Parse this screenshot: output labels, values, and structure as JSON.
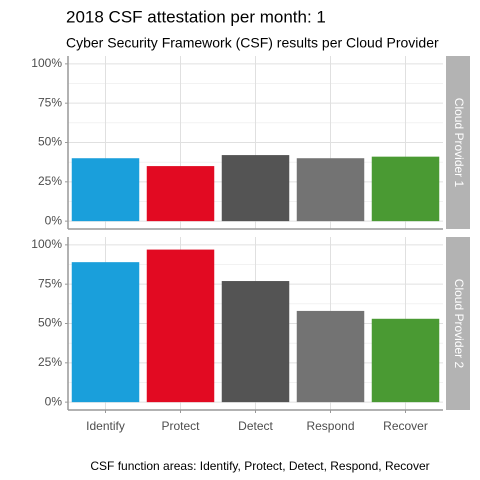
{
  "chart_data": {
    "type": "bar",
    "title": "2018 CSF attestation per month: 1",
    "subtitle": "Cyber Security Framework (CSF) results per Cloud Provider",
    "caption": "CSF function areas: Identify, Protect, Detect, Respond, Recover",
    "categories": [
      "Identify",
      "Protect",
      "Detect",
      "Respond",
      "Recover"
    ],
    "colors": [
      "#1a9fdb",
      "#e20a22",
      "#545454",
      "#737373",
      "#4a9a33"
    ],
    "ylim": [
      -5,
      105
    ],
    "yticks": [
      {
        "value": 0,
        "label": "0%"
      },
      {
        "value": 25,
        "label": "25%"
      },
      {
        "value": 50,
        "label": "50%"
      },
      {
        "value": 75,
        "label": "75%"
      },
      {
        "value": 100,
        "label": "100%"
      }
    ],
    "grid": true,
    "facets": [
      {
        "label": "Cloud Provider 1",
        "values": [
          40,
          35,
          42,
          40,
          41
        ]
      },
      {
        "label": "Cloud Provider 2",
        "values": [
          89,
          97,
          77,
          58,
          53
        ]
      }
    ]
  }
}
